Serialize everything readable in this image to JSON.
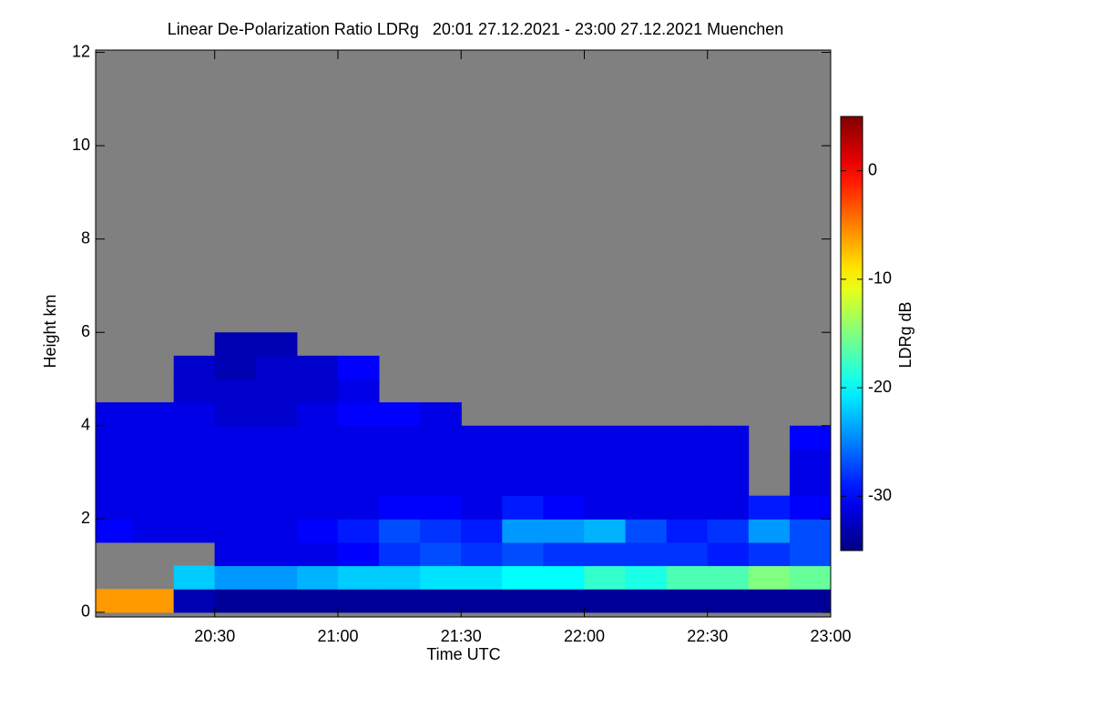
{
  "chart_data": {
    "type": "heatmap",
    "title": "Linear De-Polarization Ratio LDRg   20:01 27.12.2021 - 23:00 27.12.2021 Muenchen",
    "xlabel": "Time UTC",
    "ylabel": "Height km",
    "colorbar_label": "LDRg dB",
    "colormap": "jet",
    "background": "#808080",
    "xlim": [
      20.0167,
      23.0
    ],
    "xticks": [
      {
        "value": 20.5,
        "label": "20:30"
      },
      {
        "value": 21,
        "label": "21:00"
      },
      {
        "value": 21.5,
        "label": "21:30"
      },
      {
        "value": 22,
        "label": "22:00"
      },
      {
        "value": 22.5,
        "label": "22:30"
      },
      {
        "value": 23,
        "label": "23:00"
      }
    ],
    "ylim": [
      -0.1,
      12.05
    ],
    "yticks": [
      0,
      2,
      4,
      6,
      8,
      10,
      12
    ],
    "clim": [
      -35,
      5
    ],
    "cticks": [
      -30,
      -20,
      -10,
      0
    ],
    "x": [
      20.083,
      20.25,
      20.417,
      20.583,
      20.75,
      20.917,
      21.083,
      21.25,
      21.417,
      21.583,
      21.75,
      21.917,
      22.083,
      22.25,
      22.417,
      22.583,
      22.75,
      22.917
    ],
    "y": [
      0.25,
      0.75,
      1.25,
      1.75,
      2.25,
      2.75,
      3.25,
      3.75,
      4.25,
      4.75,
      5.25,
      5.75
    ],
    "z": [
      [
        -6,
        -6,
        -33,
        -34,
        -34,
        -34,
        -34,
        -34,
        -34,
        -34,
        -34,
        -34,
        -34,
        -34,
        -34,
        -34,
        -34,
        -34
      ],
      [
        null,
        null,
        -22,
        -24,
        -24,
        -23,
        -22,
        -22,
        -21,
        -21,
        -20,
        -20,
        -18,
        -19,
        -17,
        -17,
        -15,
        -16
      ],
      [
        null,
        null,
        null,
        -31,
        -31,
        -31,
        -30,
        -28,
        -27,
        -28,
        -27,
        -28,
        -28,
        -28,
        -28,
        -29,
        -28,
        -27
      ],
      [
        -30,
        -31,
        -31,
        -31,
        -31,
        -30,
        -29,
        -27,
        -28,
        -29,
        -24,
        -24,
        -23,
        -27,
        -29,
        -28,
        -24,
        -27
      ],
      [
        -31,
        -31,
        -31,
        -31,
        -31,
        -31,
        -31,
        -30,
        -30,
        -31,
        -29,
        -30,
        -31,
        -31,
        -31,
        -31,
        -29,
        -30
      ],
      [
        -31,
        -31,
        -31,
        -31,
        -31,
        -31,
        -31,
        -31,
        -31,
        -31,
        -31,
        -31,
        -31,
        -31,
        -31,
        -31,
        null,
        -31
      ],
      [
        -31,
        -31,
        -31,
        -31,
        -31,
        -31,
        -31,
        -31,
        -31,
        -31,
        -31,
        -31,
        -31,
        -31,
        -31,
        -31,
        null,
        -31
      ],
      [
        -31,
        -31,
        -31,
        -31,
        -31,
        -31,
        -31,
        -31,
        -31,
        -31,
        -31,
        -31,
        -31,
        -31,
        -31,
        -31,
        null,
        -30
      ],
      [
        -31,
        -31,
        -31,
        -32,
        -32,
        -31,
        -30,
        -30,
        -31,
        null,
        null,
        null,
        null,
        null,
        null,
        null,
        null,
        null
      ],
      [
        null,
        null,
        -32,
        -32,
        -32,
        -32,
        -31,
        null,
        null,
        null,
        null,
        null,
        null,
        null,
        null,
        null,
        null,
        null
      ],
      [
        null,
        null,
        -32,
        -33,
        -32,
        -32,
        -30,
        null,
        null,
        null,
        null,
        null,
        null,
        null,
        null,
        null,
        null,
        null
      ],
      [
        null,
        null,
        null,
        -33,
        -33,
        null,
        null,
        null,
        null,
        null,
        null,
        null,
        null,
        null,
        null,
        null,
        null,
        null
      ]
    ]
  }
}
